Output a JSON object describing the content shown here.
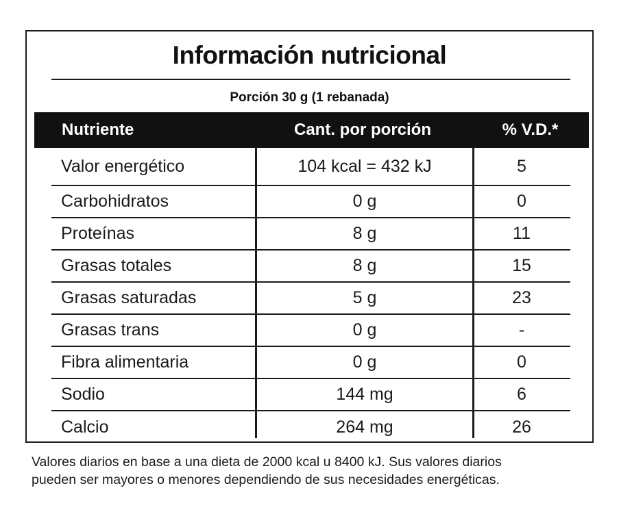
{
  "label": {
    "title": "Información nutricional",
    "portion": "Porción 30 g (1 rebanada)",
    "headers": {
      "nutrient": "Nutriente",
      "amount": "Cant. por porción",
      "dv": "% V.D.*"
    },
    "rows": [
      {
        "name": "Valor energético",
        "amount": "104 kcal = 432 kJ",
        "dv": "5"
      },
      {
        "name": "Carbohidratos",
        "amount": "0 g",
        "dv": "0"
      },
      {
        "name": "Proteínas",
        "amount": "8 g",
        "dv": "11"
      },
      {
        "name": "Grasas totales",
        "amount": "8 g",
        "dv": "15"
      },
      {
        "name": "Grasas saturadas",
        "amount": "5 g",
        "dv": "23"
      },
      {
        "name": "Grasas trans",
        "amount": "0 g",
        "dv": "-"
      },
      {
        "name": "Fibra alimentaria",
        "amount": "0 g",
        "dv": "0"
      },
      {
        "name": "Sodio",
        "amount": "144 mg",
        "dv": "6"
      },
      {
        "name": "Calcio",
        "amount": "264 mg",
        "dv": "26"
      }
    ],
    "footnote_line1": "Valores diarios en base a una dieta de 2000 kcal u 8400 kJ. Sus valores diarios",
    "footnote_line2": "pueden ser mayores o menores dependiendo de sus necesidades energéticas."
  }
}
